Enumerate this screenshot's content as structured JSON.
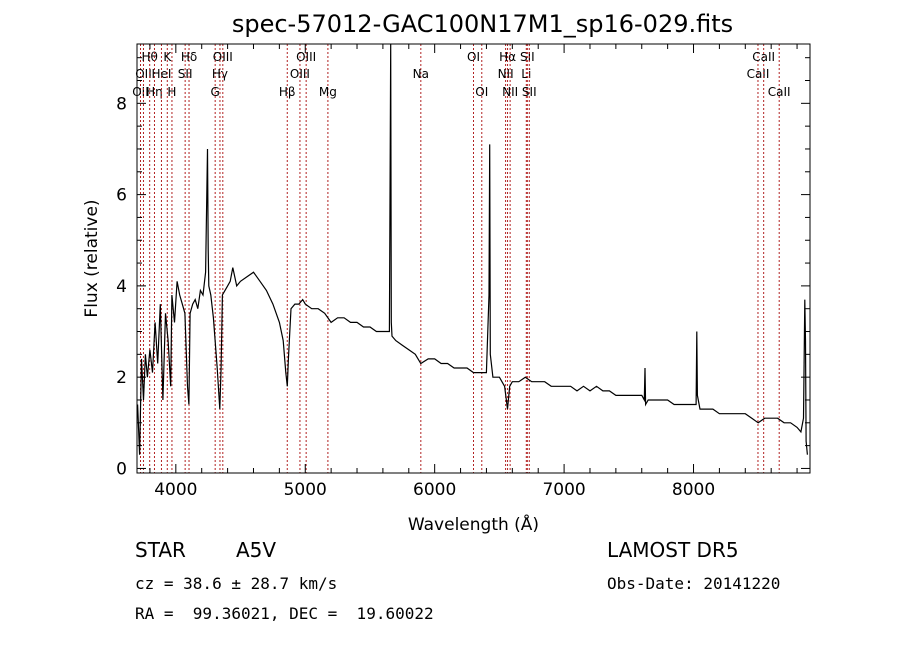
{
  "chart_data": {
    "type": "line",
    "title": "spec-57012-GAC100N17M1_sp16-029.fits",
    "xlabel": "Wavelength (Å)",
    "ylabel": "Flux (relative)",
    "xlim": [
      3700,
      8900
    ],
    "ylim": [
      -0.1,
      9.3
    ],
    "x_ticks": [
      4000,
      5000,
      6000,
      7000,
      8000
    ],
    "y_ticks": [
      0,
      2,
      4,
      6,
      8
    ],
    "grid": false,
    "line_color": "#000000",
    "marker_color": "#b22222",
    "series": [
      {
        "x": [
          3705,
          3720,
          3735,
          3750,
          3765,
          3780,
          3800,
          3820,
          3840,
          3860,
          3880,
          3900,
          3920,
          3940,
          3960,
          3970,
          3990,
          4010,
          4030,
          4050,
          4070,
          4090,
          4101,
          4110,
          4130,
          4150,
          4170,
          4190,
          4210,
          4230,
          4245,
          4250,
          4255,
          4270,
          4290,
          4320,
          4340,
          4350,
          4360,
          4380,
          4400,
          4420,
          4440,
          4470,
          4500,
          4550,
          4600,
          4650,
          4700,
          4750,
          4800,
          4830,
          4850,
          4861,
          4870,
          4890,
          4920,
          4950,
          4980,
          5000,
          5050,
          5100,
          5150,
          5200,
          5250,
          5300,
          5350,
          5400,
          5450,
          5500,
          5550,
          5600,
          5650,
          5660,
          5665,
          5670,
          5700,
          5750,
          5800,
          5850,
          5893,
          5950,
          6000,
          6050,
          6100,
          6150,
          6200,
          6250,
          6300,
          6350,
          6400,
          6420,
          6425,
          6430,
          6450,
          6500,
          6540,
          6563,
          6580,
          6600,
          6650,
          6700,
          6750,
          6800,
          6850,
          6900,
          6950,
          7000,
          7050,
          7100,
          7150,
          7200,
          7250,
          7300,
          7350,
          7400,
          7450,
          7500,
          7550,
          7600,
          7620,
          7625,
          7630,
          7650,
          7700,
          7750,
          7800,
          7850,
          7900,
          7950,
          8000,
          8020,
          8025,
          8030,
          8050,
          8100,
          8150,
          8200,
          8250,
          8300,
          8350,
          8400,
          8450,
          8500,
          8550,
          8600,
          8650,
          8700,
          8750,
          8800,
          8830,
          8850,
          8860,
          8865,
          8870,
          8880
        ],
        "y": [
          1.4,
          0.3,
          2.4,
          1.5,
          2.5,
          2.0,
          2.6,
          2.1,
          3.2,
          2.3,
          3.6,
          1.5,
          3.4,
          2.8,
          1.8,
          3.8,
          3.2,
          4.1,
          3.8,
          3.6,
          3.4,
          1.8,
          1.4,
          3.4,
          3.6,
          3.7,
          3.5,
          3.9,
          3.8,
          4.3,
          7.0,
          4.8,
          4.0,
          3.8,
          3.3,
          2.2,
          1.3,
          2.2,
          3.8,
          3.9,
          4.0,
          4.1,
          4.4,
          4.0,
          4.1,
          4.2,
          4.3,
          4.1,
          3.9,
          3.6,
          3.2,
          2.8,
          2.1,
          1.8,
          2.4,
          3.5,
          3.6,
          3.6,
          3.7,
          3.6,
          3.5,
          3.5,
          3.4,
          3.2,
          3.3,
          3.3,
          3.2,
          3.2,
          3.1,
          3.1,
          3.0,
          3.0,
          3.0,
          9.3,
          3.2,
          2.9,
          2.8,
          2.7,
          2.6,
          2.5,
          2.3,
          2.4,
          2.4,
          2.3,
          2.3,
          2.2,
          2.2,
          2.2,
          2.1,
          2.1,
          2.1,
          3.8,
          7.1,
          2.5,
          2.0,
          2.0,
          1.8,
          1.3,
          1.8,
          1.9,
          1.9,
          2.0,
          1.9,
          1.9,
          1.9,
          1.8,
          1.8,
          1.8,
          1.8,
          1.7,
          1.8,
          1.7,
          1.8,
          1.7,
          1.7,
          1.6,
          1.6,
          1.6,
          1.6,
          1.6,
          1.5,
          2.2,
          1.4,
          1.5,
          1.5,
          1.5,
          1.5,
          1.4,
          1.4,
          1.4,
          1.4,
          1.4,
          3.0,
          1.6,
          1.3,
          1.3,
          1.3,
          1.2,
          1.2,
          1.2,
          1.2,
          1.2,
          1.1,
          1.0,
          1.1,
          1.1,
          1.1,
          1.0,
          1.0,
          0.9,
          0.8,
          1.1,
          3.7,
          2.8,
          0.6,
          0.3
        ]
      }
    ],
    "lines": [
      {
        "w": 3727,
        "label": "OII",
        "row": 3
      },
      {
        "w": 3750,
        "label": "OII",
        "row": 2
      },
      {
        "w": 3798,
        "label": "Hθ",
        "row": 1
      },
      {
        "w": 3835,
        "label": "Hη",
        "row": 3
      },
      {
        "w": 3889,
        "label": "HeI",
        "row": 2
      },
      {
        "w": 3934,
        "label": "K",
        "row": 1
      },
      {
        "w": 3970,
        "label": "H",
        "row": 3
      },
      {
        "w": 4072,
        "label": "SII",
        "row": 2
      },
      {
        "w": 4102,
        "label": "Hδ",
        "row": 1
      },
      {
        "w": 4304,
        "label": "G",
        "row": 3
      },
      {
        "w": 4341,
        "label": "Hγ",
        "row": 2
      },
      {
        "w": 4363,
        "label": "OIII",
        "row": 1
      },
      {
        "w": 4861,
        "label": "Hβ",
        "row": 3
      },
      {
        "w": 4959,
        "label": "OIII",
        "row": 2
      },
      {
        "w": 5007,
        "label": "OIII",
        "row": 1
      },
      {
        "w": 5175,
        "label": "Mg",
        "row": 3
      },
      {
        "w": 5893,
        "label": "Na",
        "row": 2
      },
      {
        "w": 6300,
        "label": "OI",
        "row": 1
      },
      {
        "w": 6364,
        "label": "OI",
        "row": 3
      },
      {
        "w": 6548,
        "label": "NII",
        "row": 2
      },
      {
        "w": 6563,
        "label": "Hα",
        "row": 1
      },
      {
        "w": 6583,
        "label": "NII",
        "row": 3
      },
      {
        "w": 6708,
        "label": "Li",
        "row": 2
      },
      {
        "w": 6716,
        "label": "SII",
        "row": 1
      },
      {
        "w": 6731,
        "label": "SII",
        "row": 3
      },
      {
        "w": 8498,
        "label": "CaII",
        "row": 2
      },
      {
        "w": 8542,
        "label": "CaII",
        "row": 1
      },
      {
        "w": 8662,
        "label": "CaII",
        "row": 3
      }
    ]
  },
  "info": {
    "class_label": "STAR",
    "subclass": "A5V",
    "survey": "LAMOST DR5",
    "cz": "cz = 38.6 ± 28.7 km/s",
    "obs_date": "Obs-Date: 20141220",
    "coords": "RA =  99.36021, DEC =  19.60022"
  }
}
